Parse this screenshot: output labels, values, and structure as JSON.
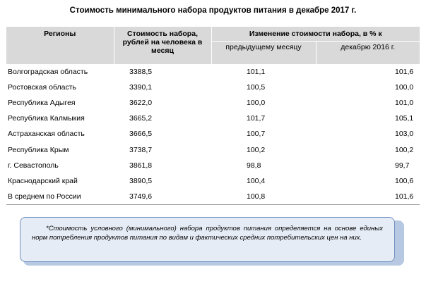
{
  "title": "Стоимость минимального набора продуктов питания в декабре 2017 г.",
  "table": {
    "headers": {
      "region": "Регионы",
      "cost": "Стоимость набора, рублей на человека в месяц",
      "change": "Изменение стоимости набора, в % к",
      "prev_month": "предыдущему месяцу",
      "dec_2016": "декабрю 2016 г."
    },
    "rows": [
      {
        "region": "Волгоградская область",
        "cost": "3388,5",
        "prev": "101,1",
        "yoy": "101,6"
      },
      {
        "region": "Ростовская область",
        "cost": "3390,1",
        "prev": "100,5",
        "yoy": "100,0"
      },
      {
        "region": "Республика Адыгея",
        "cost": "3622,0",
        "prev": "100,0",
        "yoy": "101,0"
      },
      {
        "region": "Республика Калмыкия",
        "cost": "3665,2",
        "prev": "101,7",
        "yoy": "105,1"
      },
      {
        "region": "Астраханская область",
        "cost": "3666,5",
        "prev": "100,7",
        "yoy": "103,0"
      },
      {
        "region": "Республика Крым",
        "cost": "3738,7",
        "prev": "100,2",
        "yoy": "100,2"
      },
      {
        "region": "г. Севастополь",
        "cost": "3861,8",
        "prev": "98,8",
        "yoy": "99,7"
      },
      {
        "region": "Краснодарский край",
        "cost": "3890,5",
        "prev": "100,4",
        "yoy": "100,6"
      },
      {
        "region": "В среднем по России",
        "cost": "3749,6",
        "prev": "100,8",
        "yoy": "101,6"
      }
    ]
  },
  "note": "*Стоимость условного (минимального) набора продуктов питания определяется на основе единых норм потребления продуктов питания по видам и фактических средних потребительских цен на них."
}
